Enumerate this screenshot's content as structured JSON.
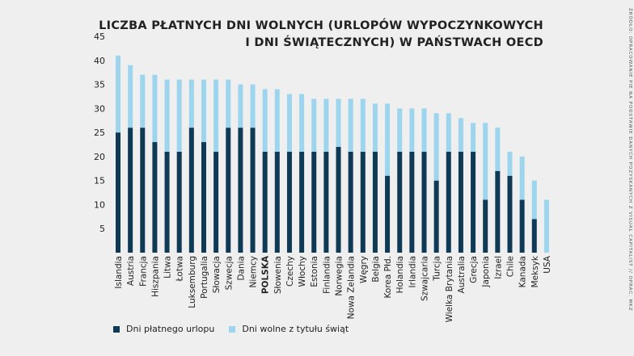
{
  "title_line1": "LICZBA PŁATNYCH DNI WOLNYCH (URLOPÓW WYPOCZYNKOWYCH",
  "title_line2": "I DNI ŚWIĄTECZNYCH) W PAŃSTWACH OECD",
  "source": "ŹRÓDŁO: OPRACOWANIE PIE NA PODSTAWIE DANYCH POZYSKANYCH Z VISUAL CAPITALIST // OPRAC. MKZ",
  "colors": {
    "vacation": "#0e3a55",
    "holidays": "#9dd5ee",
    "background": "#efefef"
  },
  "chart_data": {
    "type": "bar",
    "stacked": true,
    "ylim": [
      0,
      45
    ],
    "yticks": [
      "5",
      "10",
      "15",
      "20",
      "25",
      "30",
      "35",
      "40",
      "45"
    ],
    "categories": [
      "Islandia",
      "Austria",
      "Francja",
      "Hiszpania",
      "Litwa",
      "Łotwa",
      "Luksemburg",
      "Portugalia",
      "Słowacja",
      "Szwecja",
      "Dania",
      "Niemcy",
      "POLSKA",
      "Słowenia",
      "Czechy",
      "Włochy",
      "Estonia",
      "Finlandia",
      "Norwegia",
      "Nowa Zelandia",
      "Węgry",
      "Belgia",
      "Korea Płd.",
      "Holandia",
      "Irlandia",
      "Szwajcaria",
      "Turcja",
      "Wielka Brytania",
      "Australia",
      "Grecja",
      "Japonia",
      "Izrael",
      "Chile",
      "Kanada",
      "Meksyk",
      "USA"
    ],
    "highlight_category": "POLSKA",
    "series": [
      {
        "name": "Dni płatnego urlopu",
        "values": [
          25,
          26,
          26,
          23,
          21,
          21,
          26,
          23,
          21,
          26,
          26,
          26,
          21,
          21,
          21,
          21,
          21,
          21,
          22,
          21,
          21,
          21,
          16,
          21,
          21,
          21,
          15,
          21,
          21,
          21,
          11,
          17,
          16,
          11,
          7,
          0
        ]
      },
      {
        "name": "Dni wolne z tytułu świąt",
        "values": [
          16,
          13,
          11,
          14,
          15,
          15,
          10,
          13,
          15,
          10,
          9,
          9,
          13,
          13,
          12,
          12,
          11,
          11,
          10,
          11,
          11,
          10,
          15,
          9,
          9,
          9,
          14,
          8,
          7,
          6,
          16,
          9,
          5,
          9,
          8,
          11
        ]
      }
    ],
    "legend_position": "bottom-left",
    "grid": false
  }
}
